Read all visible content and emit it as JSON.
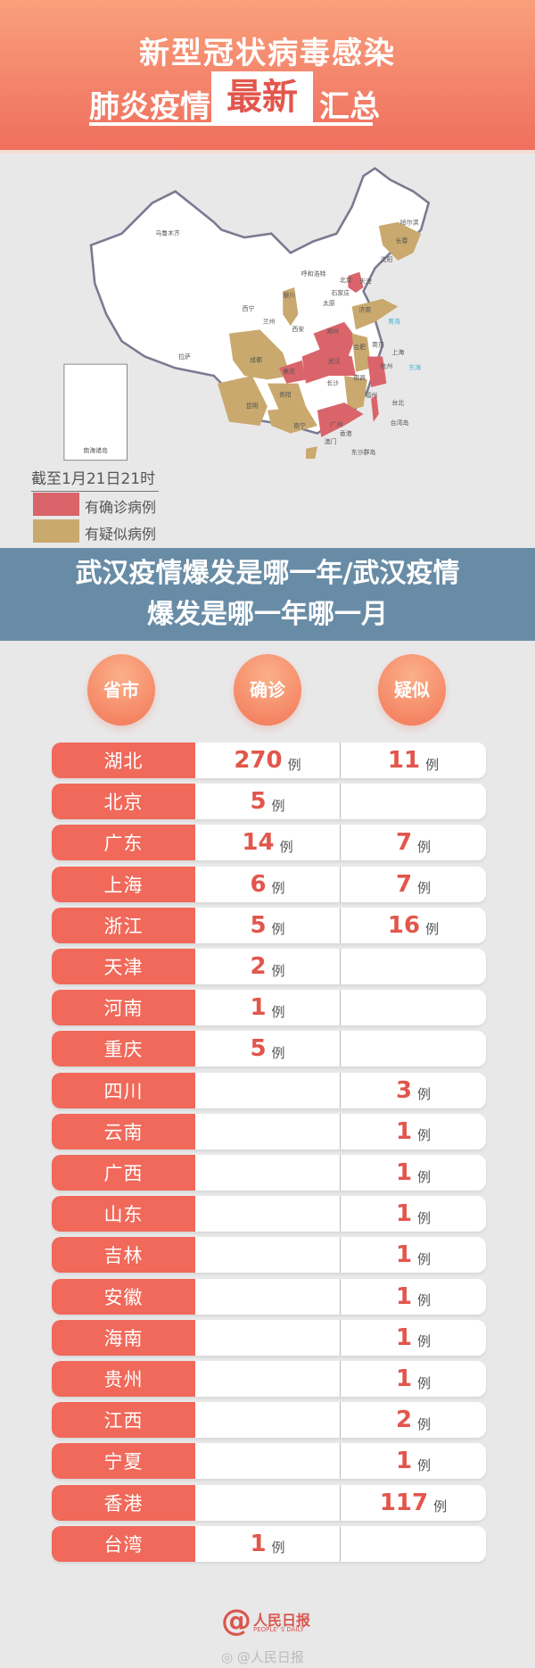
{
  "header": {
    "title_line1": "新型冠状病毒感染",
    "title_line2_a": "肺炎疫情",
    "title_line2_highlight": "最新",
    "title_line2_b": "汇总"
  },
  "map": {
    "labels": [
      "乌鲁木齐",
      "哈尔滨",
      "长春",
      "沈阳",
      "呼和浩特",
      "北京",
      "天津",
      "石家庄",
      "太原",
      "济南",
      "西宁",
      "兰州",
      "银川",
      "西安",
      "郑州",
      "合肥",
      "南京",
      "上海",
      "武汉",
      "杭州",
      "成都",
      "重庆",
      "拉萨",
      "长沙",
      "南昌",
      "贵阳",
      "昆明",
      "南宁",
      "广州",
      "福州",
      "台北",
      "香港",
      "澳门",
      "黄海",
      "东海",
      "台湾岛",
      "东沙群岛",
      "南海诸岛"
    ],
    "colors": {
      "confirmed": "#d9646a",
      "suspected": "#c9a96e"
    }
  },
  "legend": {
    "as_of": "截至1月21日21时",
    "confirmed_label": "有确诊病例",
    "suspected_label": "有疑似病例"
  },
  "table": {
    "headers": [
      "省市",
      "确诊",
      "疑似"
    ],
    "unit": "例",
    "rows": [
      {
        "region": "湖北",
        "confirmed": "270",
        "suspected": "11"
      },
      {
        "region": "北京",
        "confirmed": "5",
        "suspected": ""
      },
      {
        "region": "广东",
        "confirmed": "14",
        "suspected": "7"
      },
      {
        "region": "上海",
        "confirmed": "6",
        "suspected": "7"
      },
      {
        "region": "浙江",
        "confirmed": "5",
        "suspected": "16"
      },
      {
        "region": "天津",
        "confirmed": "2",
        "suspected": ""
      },
      {
        "region": "河南",
        "confirmed": "1",
        "suspected": ""
      },
      {
        "region": "重庆",
        "confirmed": "5",
        "suspected": ""
      },
      {
        "region": "四川",
        "confirmed": "",
        "suspected": "3"
      },
      {
        "region": "云南",
        "confirmed": "",
        "suspected": "1"
      },
      {
        "region": "广西",
        "confirmed": "",
        "suspected": "1"
      },
      {
        "region": "山东",
        "confirmed": "",
        "suspected": "1"
      },
      {
        "region": "吉林",
        "confirmed": "",
        "suspected": "1"
      },
      {
        "region": "安徽",
        "confirmed": "",
        "suspected": "1"
      },
      {
        "region": "海南",
        "confirmed": "",
        "suspected": "1"
      },
      {
        "region": "贵州",
        "confirmed": "",
        "suspected": "1"
      },
      {
        "region": "江西",
        "confirmed": "",
        "suspected": "2"
      },
      {
        "region": "宁夏",
        "confirmed": "",
        "suspected": "1"
      },
      {
        "region": "香港",
        "confirmed": "",
        "suspected": "117"
      },
      {
        "region": "台湾",
        "confirmed": "1",
        "suspected": ""
      }
    ]
  },
  "banner": {
    "line1": "武汉疫情爆发是哪一年/武汉疫情",
    "line2": "爆发是哪一年哪一月"
  },
  "footer": {
    "logo_cn": "人民日报",
    "logo_en": "PEOPLE' S DAILY",
    "weibo": "@人民日报"
  }
}
